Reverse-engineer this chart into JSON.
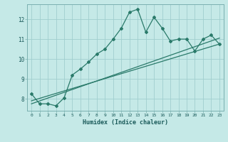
{
  "title": "",
  "xlabel": "Humidex (Indice chaleur)",
  "ylabel": "",
  "bg_color": "#c5e9e7",
  "grid_color": "#a0cece",
  "line_color": "#2a7a6a",
  "xlim": [
    -0.5,
    23.5
  ],
  "ylim": [
    7.4,
    12.75
  ],
  "xticks": [
    0,
    1,
    2,
    3,
    4,
    5,
    6,
    7,
    8,
    9,
    10,
    11,
    12,
    13,
    14,
    15,
    16,
    17,
    18,
    19,
    20,
    21,
    22,
    23
  ],
  "yticks": [
    8,
    9,
    10,
    11,
    12
  ],
  "main_x": [
    0,
    1,
    2,
    3,
    4,
    5,
    6,
    7,
    8,
    9,
    10,
    11,
    12,
    13,
    14,
    15,
    16,
    17,
    18,
    19,
    20,
    21,
    22,
    23
  ],
  "main_y": [
    8.25,
    7.75,
    7.75,
    7.65,
    8.05,
    9.2,
    9.5,
    9.85,
    10.25,
    10.5,
    11.0,
    11.55,
    12.35,
    12.5,
    11.35,
    12.1,
    11.55,
    10.9,
    11.0,
    11.0,
    10.4,
    11.0,
    11.2,
    10.75
  ],
  "trend1_x": [
    0,
    23
  ],
  "trend1_y": [
    7.9,
    10.75
  ],
  "trend2_x": [
    0,
    23
  ],
  "trend2_y": [
    7.75,
    11.05
  ]
}
